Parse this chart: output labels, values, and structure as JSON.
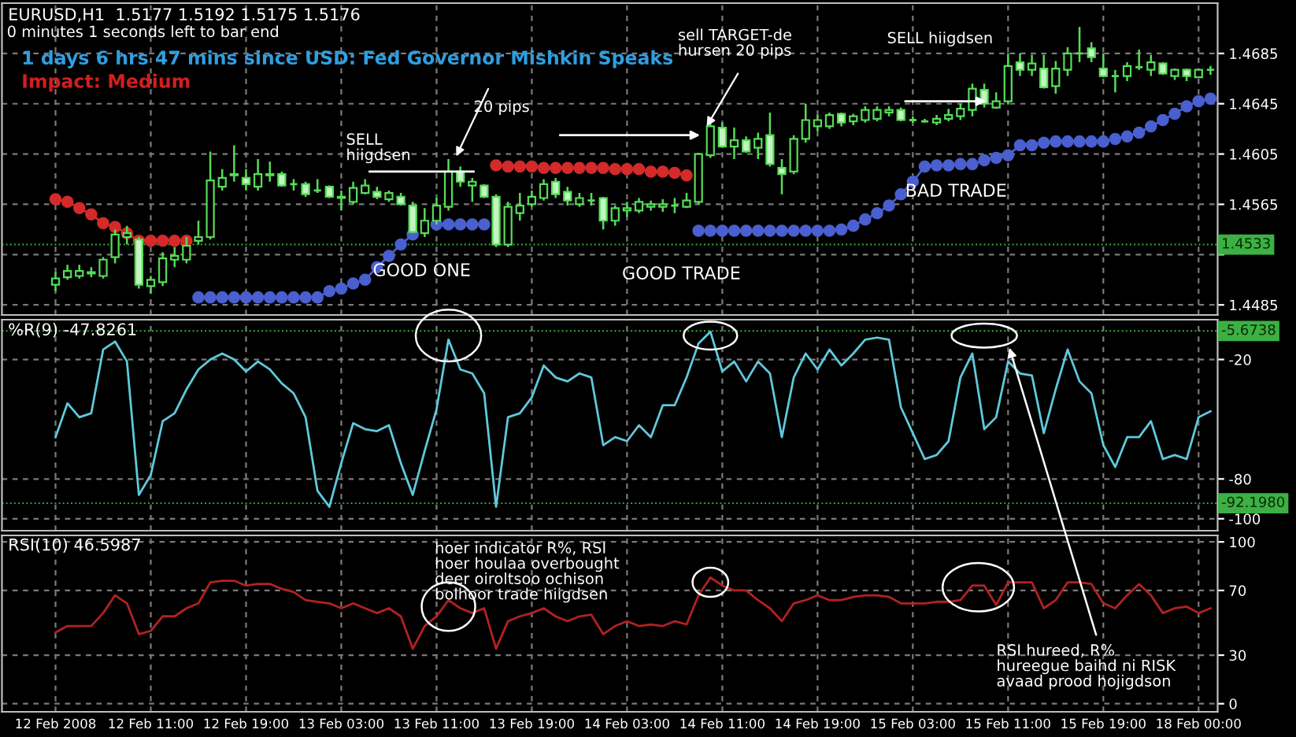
{
  "chart_data": [
    {
      "type": "candlestick",
      "title": "EURUSD,H1  1.5177 1.5192 1.5175 1.5176",
      "annotations": [
        "0 minutes 1 seconds left to bar end",
        "1 days 6 hrs 47 mins since USD: Fed Governor Mishkin Speaks",
        "Impact: Medium",
        "SELL\nhiigdsen",
        "20 pips",
        "GOOD ONE",
        "sell TARGET-de\nhursen 20 pips",
        "GOOD TRADE",
        "SELL hiigdsen",
        "BAD TRADE"
      ],
      "categories": [
        null,
        null,
        null,
        null,
        null,
        null,
        null,
        null,
        null,
        null,
        null,
        null,
        null,
        null,
        null,
        null,
        null,
        null,
        null,
        null,
        null,
        null,
        null,
        null,
        null,
        null,
        null,
        null,
        null,
        null,
        null,
        null,
        null,
        null,
        null,
        null,
        null,
        null,
        null,
        null,
        null,
        null,
        null,
        null,
        null,
        null,
        null,
        null,
        null,
        null,
        null,
        null,
        null,
        null,
        null,
        null,
        null,
        null,
        null,
        null,
        null,
        null,
        null,
        null,
        null,
        null,
        null,
        null,
        null,
        null,
        null,
        null,
        null,
        null,
        null,
        null,
        null,
        null,
        null,
        null,
        null,
        null,
        null,
        null,
        null,
        null,
        null,
        null,
        null,
        null,
        null,
        null,
        null,
        null,
        null,
        null,
        null,
        null
      ],
      "color": "#55dd55",
      "ohlc": [
        [
          1.4501,
          1.4511,
          1.4496,
          1.4506
        ],
        [
          1.4507,
          1.4517,
          1.4505,
          1.4512
        ],
        [
          1.4508,
          1.4517,
          1.4506,
          1.4512
        ],
        [
          1.451,
          1.4515,
          1.4507,
          1.4511
        ],
        [
          1.4508,
          1.4523,
          1.4506,
          1.4521
        ],
        [
          1.4523,
          1.4545,
          1.4518,
          1.4541
        ],
        [
          1.4539,
          1.4548,
          1.4533,
          1.4542
        ],
        [
          1.4537,
          1.4539,
          1.4498,
          1.4501
        ],
        [
          1.45,
          1.4508,
          1.4494,
          1.4505
        ],
        [
          1.4503,
          1.4527,
          1.45,
          1.4522
        ],
        [
          1.4521,
          1.4531,
          1.4515,
          1.4524
        ],
        [
          1.4521,
          1.4539,
          1.4518,
          1.4532
        ],
        [
          1.4536,
          1.4552,
          1.4533,
          1.4539
        ],
        [
          1.4539,
          1.4607,
          1.4537,
          1.4584
        ],
        [
          1.4579,
          1.4593,
          1.4576,
          1.4586
        ],
        [
          1.4588,
          1.4612,
          1.4583,
          1.4589
        ],
        [
          1.4586,
          1.4593,
          1.4576,
          1.4581
        ],
        [
          1.4579,
          1.4601,
          1.4576,
          1.4589
        ],
        [
          1.4588,
          1.4599,
          1.4583,
          1.4589
        ],
        [
          1.4589,
          1.4591,
          1.4579,
          1.458
        ],
        [
          1.4581,
          1.4585,
          1.4576,
          1.4581
        ],
        [
          1.4581,
          1.4583,
          1.4571,
          1.4573
        ],
        [
          1.4576,
          1.4585,
          1.4574,
          1.4576
        ],
        [
          1.4579,
          1.458,
          1.457,
          1.4571
        ],
        [
          1.457,
          1.4576,
          1.456,
          1.4571
        ],
        [
          1.4567,
          1.4583,
          1.4565,
          1.4578
        ],
        [
          1.4574,
          1.4585,
          1.4573,
          1.458
        ],
        [
          1.4575,
          1.4579,
          1.4569,
          1.4571
        ],
        [
          1.4569,
          1.4576,
          1.4567,
          1.4574
        ],
        [
          1.4571,
          1.4574,
          1.4564,
          1.4565
        ],
        [
          1.4564,
          1.4567,
          1.4542,
          1.4543
        ],
        [
          1.4542,
          1.4562,
          1.4539,
          1.4552
        ],
        [
          1.4552,
          1.457,
          1.4549,
          1.4564
        ],
        [
          1.4563,
          1.4601,
          1.456,
          1.4591
        ],
        [
          1.4591,
          1.4595,
          1.4579,
          1.4583
        ],
        [
          1.458,
          1.4586,
          1.4567,
          1.4583
        ],
        [
          1.458,
          1.4581,
          1.457,
          1.4571
        ],
        [
          1.4571,
          1.4573,
          1.4531,
          1.4533
        ],
        [
          1.4533,
          1.4567,
          1.4531,
          1.4563
        ],
        [
          1.4558,
          1.4574,
          1.4552,
          1.4564
        ],
        [
          1.4565,
          1.4576,
          1.4563,
          1.4571
        ],
        [
          1.457,
          1.4585,
          1.4568,
          1.4581
        ],
        [
          1.4583,
          1.4586,
          1.457,
          1.4573
        ],
        [
          1.4575,
          1.4579,
          1.4564,
          1.4568
        ],
        [
          1.4565,
          1.4574,
          1.4563,
          1.457
        ],
        [
          1.4568,
          1.4574,
          1.4564,
          1.4568
        ],
        [
          1.457,
          1.4571,
          1.4545,
          1.4552
        ],
        [
          1.4552,
          1.4564,
          1.4548,
          1.4562
        ],
        [
          1.456,
          1.4567,
          1.4555,
          1.4562
        ],
        [
          1.456,
          1.457,
          1.4558,
          1.4567
        ],
        [
          1.4563,
          1.4568,
          1.456,
          1.4565
        ],
        [
          1.4563,
          1.4569,
          1.4559,
          1.4565
        ],
        [
          1.4564,
          1.457,
          1.4558,
          1.4564
        ],
        [
          1.4563,
          1.4574,
          1.4562,
          1.4568
        ],
        [
          1.4567,
          1.4606,
          1.4565,
          1.4605
        ],
        [
          1.4604,
          1.463,
          1.4602,
          1.4627
        ],
        [
          1.4626,
          1.463,
          1.461,
          1.4611
        ],
        [
          1.4611,
          1.4626,
          1.4601,
          1.4616
        ],
        [
          1.4616,
          1.4619,
          1.4606,
          1.4607
        ],
        [
          1.461,
          1.4622,
          1.4601,
          1.4617
        ],
        [
          1.462,
          1.4638,
          1.4595,
          1.4597
        ],
        [
          1.4594,
          1.4601,
          1.4573,
          1.4589
        ],
        [
          1.4591,
          1.462,
          1.4589,
          1.4617
        ],
        [
          1.4617,
          1.4645,
          1.4614,
          1.4632
        ],
        [
          1.4627,
          1.4636,
          1.4623,
          1.4632
        ],
        [
          1.4627,
          1.4638,
          1.4625,
          1.4636
        ],
        [
          1.4637,
          1.4638,
          1.4627,
          1.463
        ],
        [
          1.4631,
          1.4637,
          1.4628,
          1.4635
        ],
        [
          1.4632,
          1.4643,
          1.463,
          1.464
        ],
        [
          1.4633,
          1.4643,
          1.4631,
          1.464
        ],
        [
          1.4638,
          1.4643,
          1.4635,
          1.464
        ],
        [
          1.464,
          1.4642,
          1.4631,
          1.4632
        ],
        [
          1.4632,
          1.4635,
          1.463,
          1.4632
        ],
        [
          1.4631,
          1.4633,
          1.463,
          1.4631
        ],
        [
          1.463,
          1.4636,
          1.4628,
          1.4633
        ],
        [
          1.4633,
          1.4641,
          1.4631,
          1.4636
        ],
        [
          1.4635,
          1.4645,
          1.4632,
          1.4641
        ],
        [
          1.464,
          1.4661,
          1.4635,
          1.4657
        ],
        [
          1.4656,
          1.4661,
          1.4642,
          1.4645
        ],
        [
          1.4642,
          1.4654,
          1.4641,
          1.4647
        ],
        [
          1.4647,
          1.4685,
          1.4645,
          1.4675
        ],
        [
          1.4678,
          1.4685,
          1.4667,
          1.4672
        ],
        [
          1.4672,
          1.4684,
          1.4667,
          1.4677
        ],
        [
          1.4673,
          1.4684,
          1.4657,
          1.4658
        ],
        [
          1.4659,
          1.4679,
          1.4653,
          1.4673
        ],
        [
          1.4672,
          1.469,
          1.4667,
          1.4685
        ],
        [
          1.4685,
          1.4706,
          1.4678,
          1.4685
        ],
        [
          1.4689,
          1.4694,
          1.4678,
          1.4682
        ],
        [
          1.4673,
          1.4685,
          1.4666,
          1.4667
        ],
        [
          1.4667,
          1.4672,
          1.4654,
          1.4667
        ],
        [
          1.4667,
          1.4678,
          1.4663,
          1.4675
        ],
        [
          1.4674,
          1.4688,
          1.4672,
          1.4674
        ],
        [
          1.4672,
          1.4684,
          1.4667,
          1.4678
        ],
        [
          1.4677,
          1.4678,
          1.4668,
          1.4669
        ],
        [
          1.4667,
          1.4673,
          1.4664,
          1.4672
        ],
        [
          1.4672,
          1.4673,
          1.4663,
          1.4667
        ],
        [
          1.4666,
          1.4673,
          1.4666,
          1.4672
        ],
        [
          1.4672,
          1.4675,
          1.4668,
          1.4672
        ]
      ],
      "series": [
        {
          "type": "line",
          "color": "#d42a2a",
          "values": [
            1.4569,
            1.4567,
            1.4562,
            1.4557,
            1.455,
            1.4547,
            1.4542,
            1.4536,
            1.4536,
            1.4536,
            1.4536,
            1.4536,
            null,
            null,
            null,
            null,
            null,
            null,
            null,
            null,
            null,
            null,
            null,
            null,
            null,
            null,
            null,
            null,
            null,
            null,
            null,
            null,
            null,
            null,
            null,
            null,
            null,
            1.4596,
            1.4595,
            1.4595,
            1.4595,
            1.4594,
            1.4594,
            1.4594,
            1.4594,
            1.4594,
            1.4594,
            1.4593,
            1.4593,
            1.4593,
            1.4591,
            1.4591,
            1.459,
            1.4588,
            null,
            null,
            null,
            null,
            null,
            null,
            null,
            null,
            null,
            null,
            null,
            null,
            null,
            null,
            null,
            null,
            null,
            null,
            null,
            null,
            null,
            null,
            null,
            null,
            null,
            null,
            null,
            null,
            null,
            null,
            null,
            null,
            null,
            null,
            null,
            null,
            null,
            null,
            null,
            null,
            null,
            null,
            null,
            null
          ]
        },
        {
          "type": "line",
          "color": "#4a5fd0",
          "values": [
            null,
            null,
            null,
            null,
            null,
            null,
            null,
            null,
            null,
            null,
            null,
            null,
            1.4491,
            1.4491,
            1.4491,
            1.4491,
            1.4491,
            1.4491,
            1.4491,
            1.4491,
            1.4491,
            1.4491,
            1.4491,
            1.4496,
            1.4498,
            1.4502,
            1.4505,
            1.4515,
            1.4524,
            1.4533,
            1.4541,
            null,
            1.4549,
            1.4549,
            1.4549,
            1.4549,
            1.4549,
            null,
            null,
            null,
            null,
            null,
            null,
            null,
            null,
            null,
            null,
            null,
            null,
            null,
            null,
            null,
            null,
            null,
            1.4544,
            1.4544,
            1.4544,
            1.4544,
            1.4544,
            1.4544,
            1.4544,
            1.4544,
            1.4544,
            1.4544,
            1.4544,
            1.4544,
            1.4545,
            1.4548,
            1.4553,
            1.4558,
            1.4564,
            1.4573,
            1.4583,
            1.4595,
            1.4596,
            1.4596,
            1.4597,
            1.4597,
            1.46,
            1.4602,
            1.4604,
            1.4612,
            1.4612,
            1.4614,
            1.4615,
            1.4615,
            1.4615,
            1.4615,
            1.4615,
            1.4617,
            1.4619,
            1.4622,
            1.4627,
            1.4632,
            1.4637,
            1.4643,
            1.4647,
            1.4649
          ]
        }
      ],
      "marker": "circle",
      "ylim": [
        1.4477,
        1.4725
      ],
      "yticks": [
        1.4685,
        1.4645,
        1.4605,
        1.4565,
        {
          "value": 1.4525,
          "label": null
        },
        1.4485
      ],
      "ref_lines": [
        {
          "axis": "y",
          "value": 1.4533,
          "label": "1.4533",
          "color": "#3cb043"
        }
      ],
      "grid": true,
      "tick_labels": "y"
    },
    {
      "type": "line",
      "title": "%R(9) -47.8261",
      "categories": [
        null,
        null,
        null,
        null,
        null,
        null,
        null,
        null,
        null,
        null,
        null,
        null,
        null,
        null,
        null,
        null,
        null,
        null,
        null,
        null,
        null,
        null,
        null,
        null,
        null,
        null,
        null,
        null,
        null,
        null,
        null,
        null,
        null,
        null,
        null,
        null,
        null,
        null,
        null,
        null,
        null,
        null,
        null,
        null,
        null,
        null,
        null,
        null,
        null,
        null,
        null,
        null,
        null,
        null,
        null,
        null,
        null,
        null,
        null,
        null,
        null,
        null,
        null,
        null,
        null,
        null,
        null,
        null,
        null,
        null,
        null,
        null,
        null,
        null,
        null,
        null,
        null,
        null,
        null,
        null,
        null,
        null,
        null,
        null,
        null,
        null,
        null,
        null,
        null,
        null,
        null,
        null,
        null,
        null,
        null,
        null,
        null,
        null
      ],
      "series": [
        {
          "color": "#5fc9dc",
          "values": [
            -59,
            -42,
            -49,
            -47,
            -15,
            -11,
            -21,
            -88,
            -78,
            -51,
            -47,
            -35,
            -25,
            -20,
            -17,
            -20,
            -26,
            -21,
            -25,
            -32,
            -37,
            -49,
            -86,
            -94,
            -72,
            -52,
            -55,
            -56,
            -53,
            -72,
            -88,
            -66,
            -45,
            -10,
            -25,
            -27,
            -37,
            -94,
            -49,
            -47,
            -39,
            -23,
            -29,
            -31,
            -27,
            -29,
            -63,
            -59,
            -61,
            -53,
            -59,
            -43,
            -43,
            -29,
            -12,
            -6,
            -26,
            -21,
            -31,
            -21,
            -27,
            -59,
            -29,
            -17,
            -25,
            -15,
            -23,
            -17,
            -10,
            -9,
            -10,
            -44,
            -57,
            -70,
            -68,
            -61,
            -29,
            -17,
            -55,
            -49,
            -21,
            -27,
            -28,
            -57,
            -35,
            -15,
            -31,
            -37,
            -63,
            -74,
            -59,
            -59,
            -51,
            -70,
            -68,
            -70,
            -49,
            -46
          ]
        }
      ],
      "ylim": [
        -106,
        0
      ],
      "yticks": [
        -20,
        -80,
        -100
      ],
      "ref_lines": [
        {
          "axis": "y",
          "value": -5.6738,
          "label": "-5.6738",
          "color": "#3cb043"
        },
        {
          "axis": "y",
          "value": -92.198,
          "label": "-92.1980",
          "color": "#3cb043"
        }
      ],
      "grid": true,
      "tick_labels": "y"
    },
    {
      "type": "line",
      "title": "RSI(10) 46.5987",
      "annotations": [
        "hoer indicator R%, RSI\nhoer houlaa overbought\ndeer oiroltsoo ochison\nbolhoor trade hiigdsen",
        "RSI hureed, R%\nhureegue baihd ni RISK\navaad prood hojigdson"
      ],
      "categories": [
        "12 Feb 2008",
        null,
        null,
        null,
        null,
        null,
        null,
        null,
        "12 Feb 11:00",
        null,
        null,
        null,
        null,
        null,
        null,
        null,
        "12 Feb 19:00",
        null,
        null,
        null,
        null,
        null,
        null,
        null,
        "13 Feb 03:00",
        null,
        null,
        null,
        null,
        null,
        null,
        null,
        "13 Feb 11:00",
        null,
        null,
        null,
        null,
        null,
        null,
        null,
        "13 Feb 19:00",
        null,
        null,
        null,
        null,
        null,
        null,
        null,
        "14 Feb 03:00",
        null,
        null,
        null,
        null,
        null,
        null,
        null,
        "14 Feb 11:00",
        null,
        null,
        null,
        null,
        null,
        null,
        null,
        "14 Feb 19:00",
        null,
        null,
        null,
        null,
        null,
        null,
        null,
        "15 Feb 03:00",
        null,
        null,
        null,
        null,
        null,
        null,
        null,
        "15 Feb 11:00",
        null,
        null,
        null,
        null,
        null,
        null,
        null,
        "15 Feb 19:00",
        null,
        null,
        null,
        null,
        null,
        null,
        null,
        "18 Feb 00:00",
        null
      ],
      "series": [
        {
          "color": "#b22222",
          "values": [
            44,
            48,
            48,
            48,
            56,
            67,
            62,
            43,
            45,
            54,
            54,
            59,
            62,
            75,
            76,
            76,
            73,
            74,
            74,
            71,
            69,
            64,
            63,
            62,
            59,
            62,
            59,
            56,
            59,
            54,
            34,
            48,
            54,
            64,
            59,
            56,
            59,
            34,
            51,
            54,
            56,
            59,
            54,
            51,
            54,
            55,
            43,
            48,
            51,
            48,
            49,
            48,
            51,
            49,
            67,
            78,
            73,
            70,
            70,
            64,
            59,
            51,
            62,
            64,
            67,
            64,
            64,
            66,
            67,
            67,
            66,
            62,
            62,
            62,
            63,
            63,
            64,
            73,
            73,
            61,
            75,
            75,
            75,
            59,
            64,
            75,
            75,
            74,
            62,
            59,
            67,
            74,
            67,
            56,
            59,
            60,
            56,
            59
          ]
        }
      ],
      "ylim": [
        -5,
        104
      ],
      "yticks": [
        0,
        30,
        70,
        100
      ],
      "grid": true
    }
  ]
}
